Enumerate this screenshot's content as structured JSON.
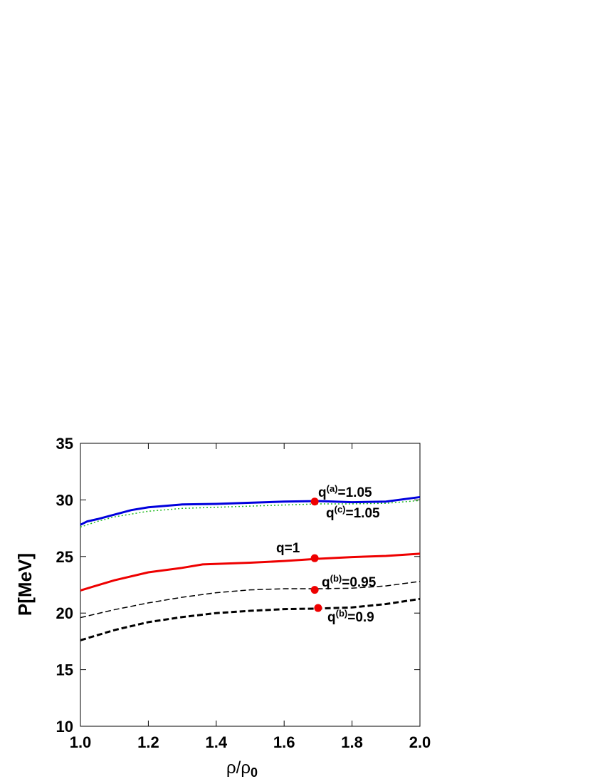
{
  "chart_data": {
    "type": "line",
    "xlabel": {
      "base": "ρ/ρ",
      "sub": "0"
    },
    "ylabel": "P[MeV]",
    "xlim": [
      1.0,
      2.0
    ],
    "ylim": [
      10,
      35
    ],
    "xticks": [
      {
        "value": 1,
        "label": "1.0"
      },
      {
        "value": 1.2,
        "label": "1.2"
      },
      {
        "value": 1.4,
        "label": "1.4"
      },
      {
        "value": 1.6,
        "label": "1.6"
      },
      {
        "value": 1.8,
        "label": "1.8"
      },
      {
        "value": 2,
        "label": "2.0"
      }
    ],
    "yticks": [
      10,
      15,
      20,
      25,
      30,
      35
    ],
    "series": [
      {
        "color": "#0000dd",
        "style": "solid",
        "width": 3,
        "x": [
          1.0,
          1.02,
          1.05,
          1.1,
          1.15,
          1.2,
          1.3,
          1.4,
          1.5,
          1.6,
          1.7,
          1.8,
          1.9,
          2.0
        ],
        "values": [
          27.8,
          28.1,
          28.3,
          28.7,
          29.1,
          29.35,
          29.6,
          29.65,
          29.75,
          29.85,
          29.9,
          29.8,
          29.85,
          30.25
        ]
      },
      {
        "color": "#22bb22",
        "style": "dotted",
        "width": 1.5,
        "x": [
          1.0,
          1.05,
          1.1,
          1.2,
          1.3,
          1.4,
          1.5,
          1.6,
          1.7,
          1.8,
          1.9,
          2.0
        ],
        "values": [
          27.6,
          28.1,
          28.5,
          29.0,
          29.25,
          29.35,
          29.45,
          29.55,
          29.65,
          29.65,
          29.7,
          29.95
        ]
      },
      {
        "color": "#ee0000",
        "style": "solid",
        "width": 3,
        "x": [
          1.0,
          1.1,
          1.2,
          1.3,
          1.36,
          1.5,
          1.6,
          1.7,
          1.8,
          1.9,
          2.0
        ],
        "values": [
          22.0,
          22.9,
          23.6,
          24.0,
          24.3,
          24.45,
          24.6,
          24.8,
          24.95,
          25.05,
          25.25
        ]
      },
      {
        "color": "#000000",
        "style": "dashed",
        "width": 1.5,
        "x": [
          1.0,
          1.1,
          1.2,
          1.3,
          1.4,
          1.5,
          1.6,
          1.7,
          1.8,
          1.9,
          2.0
        ],
        "values": [
          19.6,
          20.3,
          20.9,
          21.4,
          21.8,
          22.05,
          22.15,
          22.15,
          22.2,
          22.4,
          22.8
        ]
      },
      {
        "color": "#000000",
        "style": "dashed",
        "width": 3,
        "x": [
          1.0,
          1.1,
          1.2,
          1.3,
          1.4,
          1.5,
          1.6,
          1.7,
          1.8,
          1.9,
          2.0
        ],
        "values": [
          17.6,
          18.5,
          19.2,
          19.65,
          20.0,
          20.2,
          20.35,
          20.4,
          20.5,
          20.8,
          21.25
        ]
      }
    ],
    "points": {
      "color": "#ee0000",
      "x": [
        1.69,
        1.69,
        1.69,
        1.7
      ],
      "values": [
        29.85,
        24.85,
        22.05,
        20.45
      ]
    },
    "annotations": [
      {
        "base": "q",
        "sup": "(a)",
        "rest": "=1.05"
      },
      {
        "base": "q",
        "sup": "(c)",
        "rest": "=1.05"
      },
      {
        "base": "q=1"
      },
      {
        "base": "q",
        "sup": "(b)",
        "rest": "=0.95"
      },
      {
        "base": "q",
        "sup": "(b)",
        "rest": "=0.9"
      }
    ]
  }
}
